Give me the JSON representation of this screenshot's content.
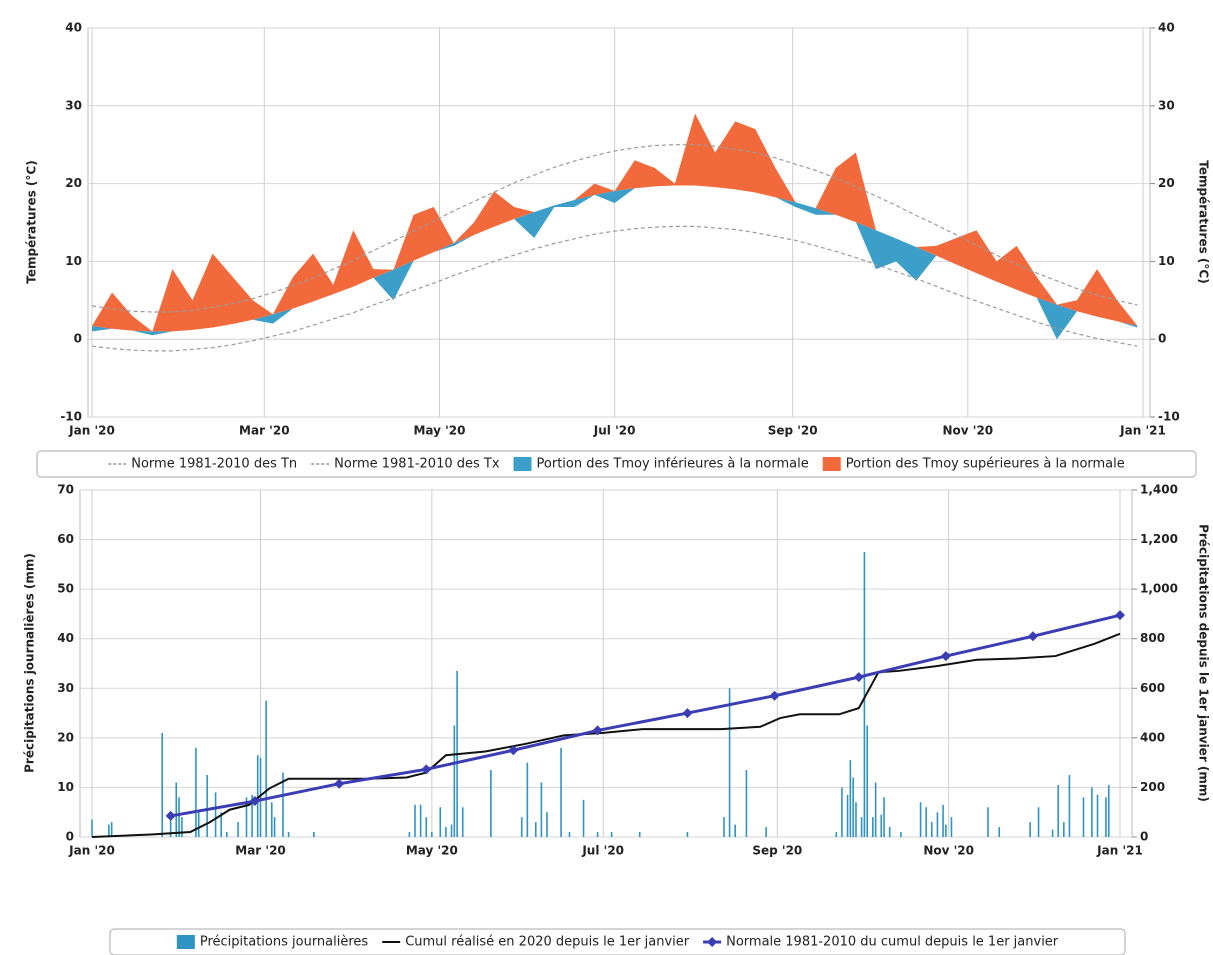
{
  "chart_data": [
    {
      "type": "area",
      "ylabel": "Températures (°C)",
      "y2label": "Températures (°C)",
      "xlim": [
        0,
        366
      ],
      "xticks": [
        {
          "value": 0,
          "label": "Jan '20"
        },
        {
          "value": 60,
          "label": "Mar '20"
        },
        {
          "value": 121,
          "label": "May '20"
        },
        {
          "value": 182,
          "label": "Jul '20"
        },
        {
          "value": 244,
          "label": "Sep '20"
        },
        {
          "value": 305,
          "label": "Nov '20"
        },
        {
          "value": 366,
          "label": "Jan '21"
        }
      ],
      "ylim": [
        -10,
        40
      ],
      "yticks": [
        -10,
        0,
        10,
        20,
        30,
        40
      ],
      "y2lim": [
        -10,
        40
      ],
      "y2ticks": [
        -10,
        0,
        10,
        20,
        30,
        40
      ],
      "grid": true,
      "x": [
        0,
        7,
        14,
        21,
        28,
        35,
        42,
        49,
        56,
        63,
        70,
        77,
        84,
        91,
        98,
        105,
        112,
        119,
        126,
        133,
        140,
        147,
        154,
        161,
        168,
        175,
        182,
        189,
        196,
        203,
        210,
        217,
        224,
        231,
        238,
        245,
        252,
        259,
        266,
        273,
        280,
        287,
        294,
        301,
        308,
        315,
        322,
        329,
        336,
        343,
        350,
        357,
        364
      ],
      "series": [
        {
          "name": "Norme 1981-2010 des Tn",
          "color": "#9a9a9a",
          "dash": true,
          "values": [
            -0.9,
            -1.2,
            -1.4,
            -1.5,
            -1.5,
            -1.3,
            -1.1,
            -0.7,
            -0.2,
            0.4,
            1.0,
            1.8,
            2.6,
            3.4,
            4.4,
            5.3,
            6.3,
            7.2,
            8.2,
            9.1,
            10.0,
            10.8,
            11.6,
            12.3,
            12.9,
            13.5,
            13.9,
            14.2,
            14.4,
            14.5,
            14.5,
            14.3,
            14.1,
            13.7,
            13.2,
            12.7,
            12.0,
            11.3,
            10.5,
            9.6,
            8.7,
            7.8,
            6.8,
            5.8,
            4.9,
            4.0,
            3.1,
            2.2,
            1.4,
            0.7,
            0.1,
            -0.4,
            -0.9
          ]
        },
        {
          "name": "Norme 1981-2010 des Tx",
          "color": "#9a9a9a",
          "dash": true,
          "values": [
            4.3,
            3.9,
            3.6,
            3.5,
            3.5,
            3.7,
            4.1,
            4.6,
            5.2,
            6.0,
            6.9,
            7.9,
            9.0,
            10.1,
            11.4,
            12.6,
            13.9,
            15.2,
            16.5,
            17.7,
            18.9,
            20.1,
            21.1,
            22.1,
            22.9,
            23.6,
            24.2,
            24.6,
            24.9,
            25.0,
            25.0,
            24.8,
            24.4,
            24.0,
            23.3,
            22.5,
            21.7,
            20.7,
            19.6,
            18.4,
            17.2,
            15.9,
            14.7,
            13.4,
            12.1,
            10.8,
            9.6,
            8.5,
            7.5,
            6.5,
            5.7,
            5.0,
            4.4
          ]
        }
      ],
      "tmoy": [
        1,
        6,
        3,
        0.5,
        9,
        5,
        11,
        8,
        5,
        2,
        8,
        11,
        7,
        14,
        9,
        5,
        16,
        17,
        12,
        15,
        19,
        17,
        13,
        17,
        17,
        20,
        17.5,
        23,
        22,
        20,
        29,
        24,
        28,
        27,
        22,
        17,
        16,
        22,
        24,
        9,
        10,
        7.5,
        12,
        13,
        14,
        10,
        12,
        8,
        0,
        5,
        9,
        5,
        1.5
      ],
      "fills": [
        {
          "name": "Portion des Tmoy inférieures à la normale",
          "color": "#3b9fc9"
        },
        {
          "name": "Portion des Tmoy supérieures à la normale",
          "color": "#f26a3b"
        }
      ]
    },
    {
      "type": "bar",
      "ylabel": "Précipitations journalières (mm)",
      "y2label": "Précipitations depuis le 1er janvier (mm)",
      "xlim": [
        0,
        366
      ],
      "xticks": [
        {
          "value": 0,
          "label": "Jan '20"
        },
        {
          "value": 60,
          "label": "Mar '20"
        },
        {
          "value": 121,
          "label": "May '20"
        },
        {
          "value": 182,
          "label": "Jul '20"
        },
        {
          "value": 244,
          "label": "Sep '20"
        },
        {
          "value": 305,
          "label": "Nov '20"
        },
        {
          "value": 366,
          "label": "Jan '21"
        }
      ],
      "ylim": [
        0,
        70
      ],
      "yticks": [
        0,
        10,
        20,
        30,
        40,
        50,
        60,
        70
      ],
      "y2lim": [
        0,
        1400
      ],
      "y2ticks": [
        0,
        200,
        400,
        600,
        800,
        {
          "value": 1000,
          "label": "1,000"
        },
        {
          "value": 1200,
          "label": "1,200"
        },
        {
          "value": 1400,
          "label": "1,400"
        }
      ],
      "grid": true,
      "series": [
        {
          "name": "Précipitations journalières",
          "type": "bar",
          "color": "#2f93c4",
          "x": [
            0,
            6,
            7,
            25,
            28,
            30,
            31,
            32,
            37,
            38,
            41,
            44,
            46,
            48,
            52,
            55,
            57,
            59,
            60,
            62,
            64,
            65,
            68,
            70,
            79,
            113,
            115,
            117,
            119,
            121,
            124,
            126,
            128,
            129,
            130,
            132,
            142,
            153,
            155,
            158,
            160,
            162,
            167,
            170,
            175,
            180,
            185,
            195,
            212,
            225,
            227,
            229,
            233,
            240,
            265,
            267,
            269,
            270,
            271,
            272,
            274,
            275,
            276,
            278,
            279,
            281,
            282,
            284,
            288,
            295,
            297,
            299,
            301,
            303,
            304,
            306,
            319,
            323,
            334,
            337,
            342,
            344,
            346,
            348,
            353,
            356,
            358,
            361,
            362
          ],
          "values": [
            3.5,
            2.5,
            3,
            21,
            4,
            11,
            8,
            4,
            18,
            5,
            12.5,
            9,
            5,
            1,
            3,
            8,
            8.5,
            16.5,
            16,
            27.5,
            7,
            4,
            13,
            1,
            1,
            1,
            6.5,
            6.5,
            4,
            1,
            6,
            2,
            2.5,
            22.5,
            33.5,
            6,
            13.5,
            4,
            15,
            3,
            11,
            5,
            18,
            1,
            7.5,
            1,
            1,
            1,
            1,
            4,
            30,
            2.5,
            13.5,
            2,
            1,
            10,
            8.5,
            15.5,
            12,
            7,
            4,
            57.5,
            22.5,
            4,
            11,
            4.5,
            8,
            2,
            1,
            7,
            6,
            3,
            5,
            6.5,
            2.5,
            4,
            6,
            2,
            3,
            6,
            1.5,
            10.5,
            3,
            12.5,
            8,
            10,
            8.5,
            8,
            10.5
          ]
        },
        {
          "name": "Cumul réalisé en 2020 depuis le 1er janvier",
          "type": "line",
          "color": "#111111",
          "axis": "y2",
          "x": [
            0,
            21,
            35,
            42,
            49,
            56,
            63,
            70,
            84,
            98,
            112,
            119,
            126,
            140,
            154,
            168,
            182,
            196,
            210,
            224,
            238,
            245,
            252,
            266,
            273,
            280,
            287,
            301,
            315,
            329,
            343,
            357,
            366
          ],
          "values": [
            0,
            10,
            20,
            60,
            110,
            130,
            195,
            235,
            235,
            235,
            240,
            260,
            330,
            345,
            375,
            410,
            420,
            435,
            435,
            435,
            445,
            480,
            495,
            495,
            520,
            665,
            670,
            690,
            715,
            720,
            730,
            780,
            820
          ]
        },
        {
          "name": "Normale 1981-2010 du cumul depuis le 1er janvier",
          "type": "line",
          "marker": true,
          "color": "#3a3db4",
          "axis": "y2",
          "x": [
            28,
            58,
            88,
            119,
            150,
            180,
            212,
            243,
            273,
            304,
            335,
            366
          ],
          "values": [
            85,
            145,
            215,
            273,
            350,
            430,
            500,
            570,
            645,
            730,
            810,
            895
          ]
        }
      ]
    }
  ]
}
